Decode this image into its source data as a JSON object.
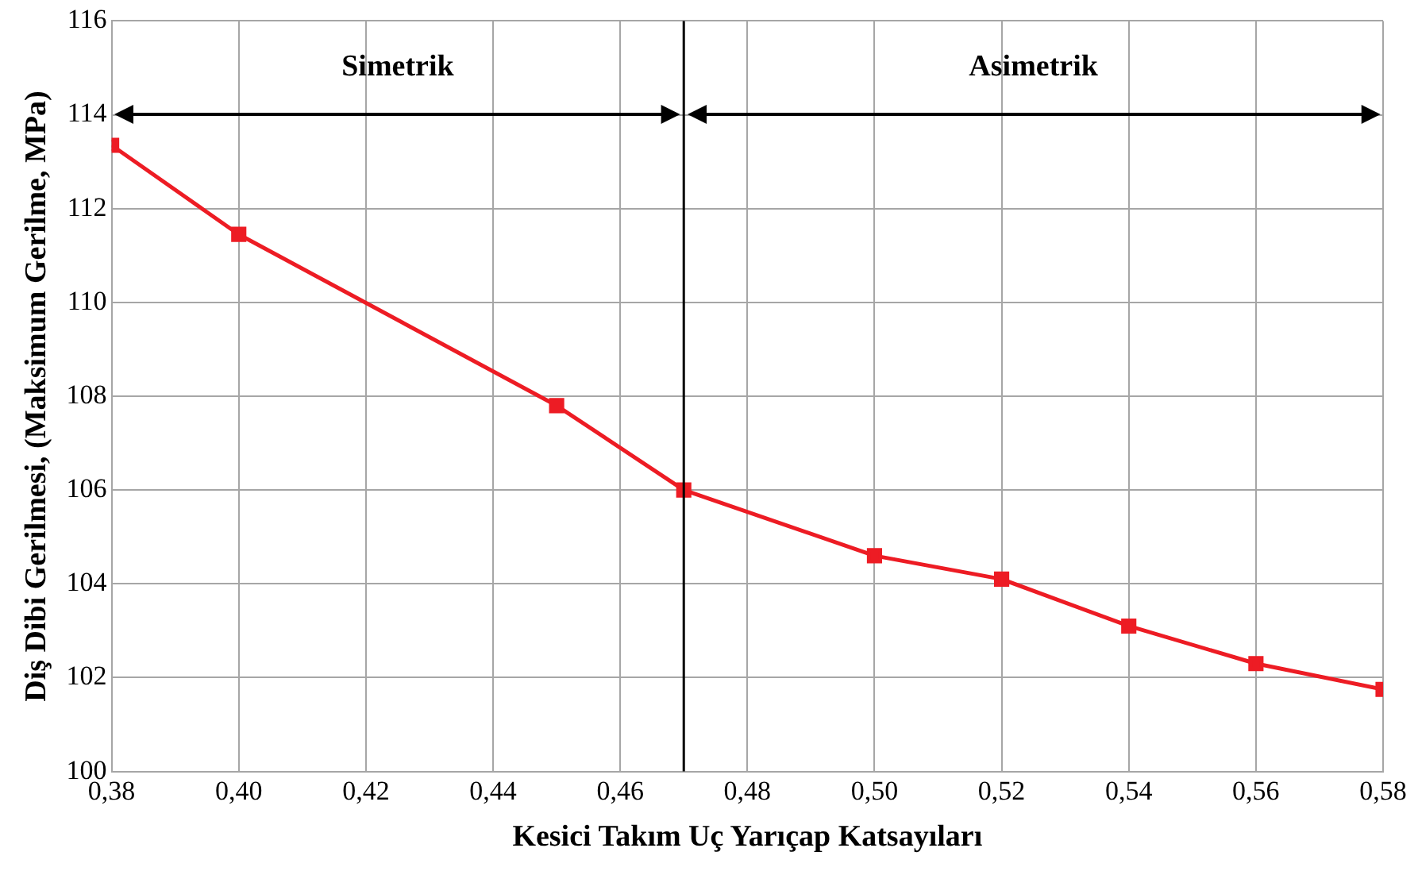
{
  "chart_data": {
    "type": "line",
    "xlabel": "Kesici Takım Uç Yarıçap Katsayıları",
    "ylabel": "Diş Dibi Gerilmesi, (Maksimum Gerilme, MPa)",
    "x": [
      0.38,
      0.4,
      0.45,
      0.47,
      0.5,
      0.52,
      0.54,
      0.56,
      0.58
    ],
    "series": [
      {
        "color": "#ed1c24",
        "values": [
          113.35,
          111.45,
          107.8,
          106.0,
          104.6,
          104.1,
          103.1,
          102.3,
          101.75
        ]
      }
    ],
    "xlim": [
      0.38,
      0.58
    ],
    "xticks": [
      {
        "value": 0.38,
        "label": "0,38"
      },
      {
        "value": 0.4,
        "label": "0,40"
      },
      {
        "value": 0.42,
        "label": "0,42"
      },
      {
        "value": 0.44,
        "label": "0,44"
      },
      {
        "value": 0.46,
        "label": "0,46"
      },
      {
        "value": 0.48,
        "label": "0,48"
      },
      {
        "value": 0.5,
        "label": "0,50"
      },
      {
        "value": 0.52,
        "label": "0,52"
      },
      {
        "value": 0.54,
        "label": "0,54"
      },
      {
        "value": 0.56,
        "label": "0,56"
      },
      {
        "value": 0.58,
        "label": "0,58"
      }
    ],
    "ylim": [
      100,
      116
    ],
    "yticks": [
      100,
      102,
      104,
      106,
      108,
      110,
      112,
      114,
      116
    ],
    "ref_lines": [
      {
        "axis": "x",
        "value": 0.47,
        "color": "#000000"
      }
    ],
    "annotations": [
      "Simetrik",
      "Asimetrik"
    ],
    "grid": true,
    "legend": false,
    "marker": "square",
    "line_style": "solid"
  }
}
